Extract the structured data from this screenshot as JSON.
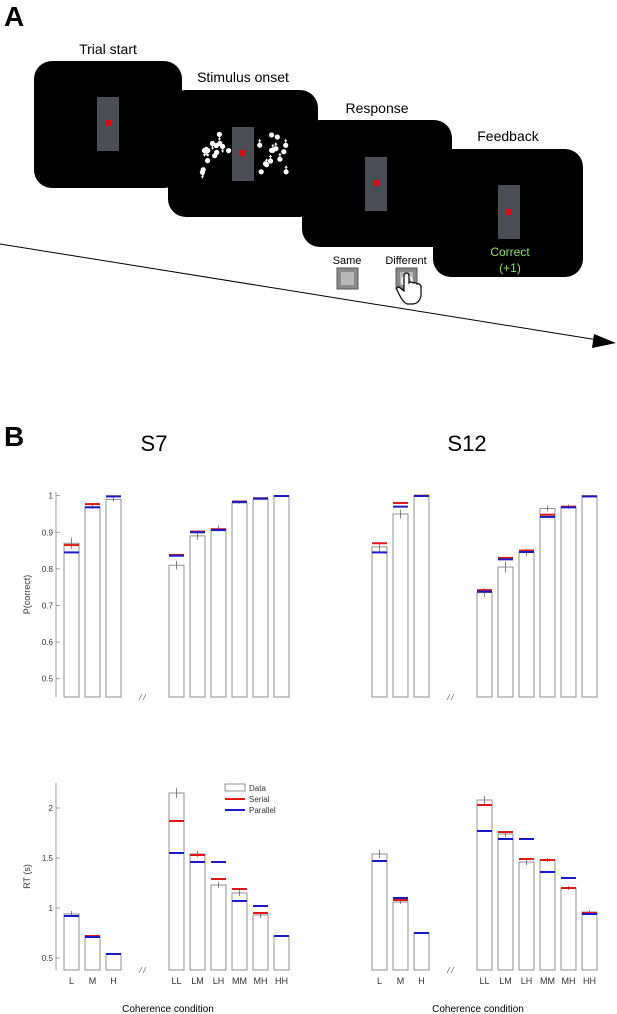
{
  "panel_a": {
    "label": "A",
    "screens": [
      {
        "title": "Trial start"
      },
      {
        "title": "Stimulus onset"
      },
      {
        "title": "Response"
      },
      {
        "title": "Feedback",
        "feedback_text": "Correct",
        "feedback_points": "(+1)"
      }
    ],
    "buttons": {
      "same": "Same",
      "different": "Different"
    },
    "colors": {
      "screen": "#000000",
      "bar": "#4a4d55",
      "fixation": "#d01010",
      "feedback": "#8fe060"
    }
  },
  "panel_b": {
    "label": "B",
    "subject_titles": [
      "S7",
      "S12"
    ],
    "xlabel": "Coherence condition",
    "legend": [
      "Data",
      "Serial",
      "Parallel"
    ],
    "colors": {
      "data": "#444444",
      "serial": "#e01818",
      "parallel": "#1a1ac8"
    }
  },
  "chart_data": [
    {
      "type": "bar",
      "subject": "S7",
      "ylabel": "P(correct)",
      "ylim": [
        0.45,
        1.01
      ],
      "yticks": [
        "0.5",
        "0.6",
        "0.7",
        "0.8",
        "0.9",
        "1"
      ],
      "categories": [
        "L",
        "M",
        "H",
        "LL",
        "LM",
        "LH",
        "MM",
        "MH",
        "HH"
      ],
      "show_tick_labels": false,
      "series": [
        {
          "name": "Data",
          "values": [
            0.87,
            0.97,
            0.99,
            0.81,
            0.89,
            0.91,
            0.98,
            0.99,
            1.0
          ],
          "errors": [
            0.015,
            0.005,
            0.006,
            0.012,
            0.01,
            0.008,
            0.002,
            0.002,
            0.001
          ]
        },
        {
          "name": "Serial",
          "values": [
            0.865,
            0.977,
            0.998,
            0.838,
            0.902,
            0.908,
            0.984,
            0.993,
            0.999
          ]
        },
        {
          "name": "Parallel",
          "values": [
            0.845,
            0.968,
            0.998,
            0.836,
            0.9,
            0.906,
            0.983,
            0.992,
            0.999
          ]
        }
      ]
    },
    {
      "type": "bar",
      "subject": "S12",
      "ylabel": "",
      "ylim": [
        0.45,
        1.01
      ],
      "yticks": [],
      "categories": [
        "L",
        "M",
        "H",
        "LL",
        "LM",
        "LH",
        "MM",
        "MH",
        "HH"
      ],
      "show_tick_labels": false,
      "series": [
        {
          "name": "Data",
          "values": [
            0.86,
            0.95,
            1.0,
            0.735,
            0.805,
            0.845,
            0.965,
            0.97,
            1.0
          ],
          "errors": [
            0.012,
            0.012,
            0.001,
            0.012,
            0.015,
            0.01,
            0.008,
            0.006,
            0.001
          ]
        },
        {
          "name": "Serial",
          "values": [
            0.87,
            0.98,
            1.0,
            0.742,
            0.83,
            0.85,
            0.948,
            0.97,
            0.998
          ]
        },
        {
          "name": "Parallel",
          "values": [
            0.845,
            0.97,
            0.999,
            0.738,
            0.826,
            0.846,
            0.942,
            0.968,
            0.998
          ]
        }
      ]
    },
    {
      "type": "bar",
      "subject": "S7",
      "ylabel": "RT (s)",
      "ylim": [
        0.38,
        2.25
      ],
      "yticks": [
        "0.5",
        "1",
        "1.5",
        "2"
      ],
      "categories": [
        "L",
        "M",
        "H",
        "LL",
        "LM",
        "LH",
        "MM",
        "MH",
        "HH"
      ],
      "show_tick_labels": true,
      "legend": true,
      "series": [
        {
          "name": "Data",
          "values": [
            0.94,
            0.72,
            0.54,
            2.15,
            1.54,
            1.23,
            1.15,
            0.93,
            0.72
          ],
          "errors": [
            0.03,
            0.01,
            0.005,
            0.05,
            0.03,
            0.03,
            0.03,
            0.03,
            0.01
          ]
        },
        {
          "name": "Serial",
          "values": [
            0.92,
            0.72,
            0.54,
            1.87,
            1.53,
            1.29,
            1.19,
            0.95,
            0.72
          ]
        },
        {
          "name": "Parallel",
          "values": [
            0.92,
            0.71,
            0.54,
            1.55,
            1.46,
            1.46,
            1.07,
            1.02,
            0.72
          ]
        }
      ]
    },
    {
      "type": "bar",
      "subject": "S12",
      "ylabel": "",
      "ylim": [
        0.38,
        2.25
      ],
      "yticks": [],
      "categories": [
        "L",
        "M",
        "H",
        "LL",
        "LM",
        "LH",
        "MM",
        "MH",
        "HH"
      ],
      "show_tick_labels": true,
      "series": [
        {
          "name": "Data",
          "values": [
            1.54,
            1.06,
            0.75,
            2.08,
            1.74,
            1.46,
            1.48,
            1.2,
            0.96
          ],
          "errors": [
            0.04,
            0.02,
            0.005,
            0.04,
            0.03,
            0.03,
            0.02,
            0.02,
            0.02
          ]
        },
        {
          "name": "Serial",
          "values": [
            1.47,
            1.08,
            0.75,
            2.03,
            1.76,
            1.49,
            1.48,
            1.2,
            0.95
          ]
        },
        {
          "name": "Parallel",
          "values": [
            1.47,
            1.1,
            0.75,
            1.77,
            1.69,
            1.69,
            1.36,
            1.3,
            0.94
          ]
        }
      ]
    }
  ]
}
